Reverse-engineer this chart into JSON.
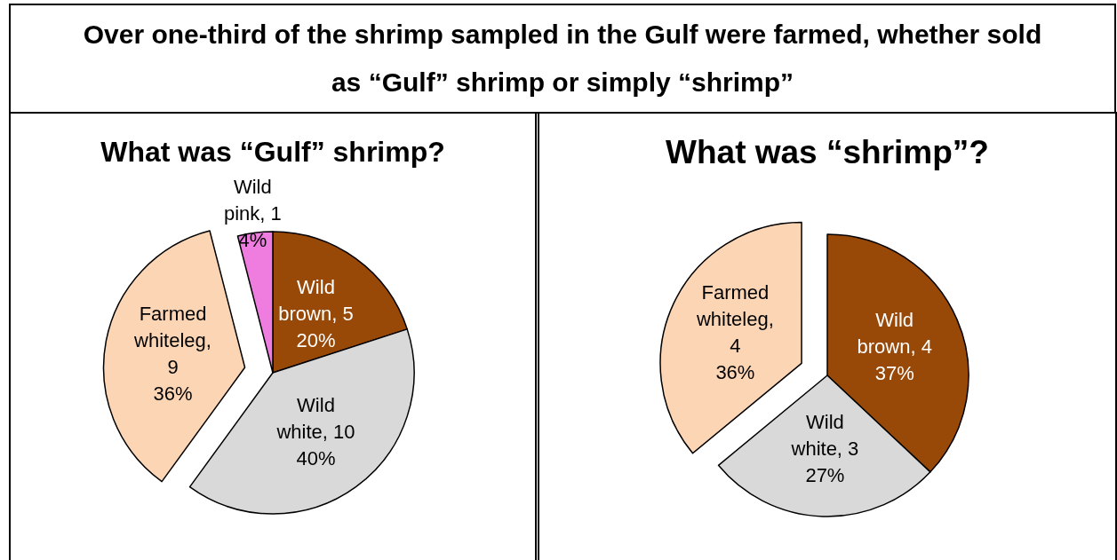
{
  "chart_data": [
    {
      "type": "other",
      "title": "Over one-third of the shrimp sampled in the Gulf were farmed, whether sold as “Gulf” shrimp or simply “shrimp”"
    },
    {
      "type": "pie",
      "title": "What was “Gulf” shrimp?",
      "categories": [
        "Wild brown, 5",
        "Wild white, 10",
        "Farmed whiteleg, 9",
        "Wild pink, 1"
      ],
      "values": [
        20,
        40,
        36,
        4
      ],
      "value_labels": [
        "20%",
        "40%",
        "36%",
        "4%"
      ],
      "colors": [
        "#984807",
        "#d9d9d9",
        "#fcd5b5",
        "#ee7ddf"
      ]
    },
    {
      "type": "pie",
      "title": "What was “shrimp”?",
      "categories": [
        "Wild brown, 4",
        "Wild white, 3",
        "Farmed whiteleg, 4"
      ],
      "values": [
        37,
        27,
        36
      ],
      "value_labels": [
        "37%",
        "27%",
        "36%"
      ],
      "colors": [
        "#984807",
        "#d9d9d9",
        "#fcd5b5"
      ]
    }
  ]
}
